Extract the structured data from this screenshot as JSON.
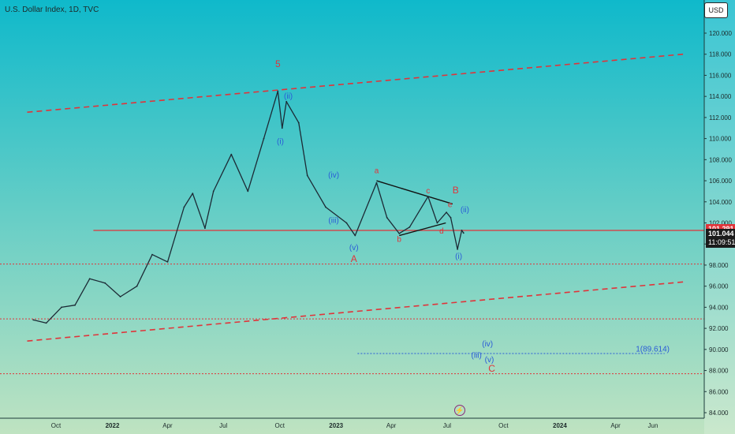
{
  "header": {
    "symbol_title": "U.S. Dollar Index, 1D, TVC",
    "currency_button": "USD"
  },
  "price_badges": {
    "level": "101.291",
    "last_price": "101.044",
    "countdown": "11:09:51"
  },
  "chart_data": {
    "type": "line",
    "title": "U.S. Dollar Index, 1D, TVC",
    "x_ticks": [
      "Oct",
      "2022",
      "Apr",
      "Jul",
      "Oct",
      "2023",
      "Apr",
      "Jul",
      "Oct",
      "2024",
      "Apr",
      "Jun"
    ],
    "y_ticks": [
      "84.000",
      "86.000",
      "88.000",
      "90.000",
      "92.000",
      "94.000",
      "96.000",
      "98.000",
      "100.000",
      "102.000",
      "104.000",
      "106.000",
      "108.000",
      "110.000",
      "112.000",
      "114.000",
      "116.000",
      "118.000",
      "120.000"
    ],
    "ylim": [
      83.5,
      121.5
    ],
    "series": [
      {
        "name": "",
        "points": [
          [
            "2021-08-25",
            92.8
          ],
          [
            "2021-09-15",
            92.5
          ],
          [
            "2021-10-10",
            94.0
          ],
          [
            "2021-11-01",
            94.2
          ],
          [
            "2021-11-25",
            96.7
          ],
          [
            "2021-12-20",
            96.3
          ],
          [
            "2022-01-14",
            95.0
          ],
          [
            "2022-02-10",
            96.0
          ],
          [
            "2022-03-07",
            99.0
          ],
          [
            "2022-04-01",
            98.3
          ],
          [
            "2022-04-28",
            103.5
          ],
          [
            "2022-05-12",
            104.8
          ],
          [
            "2022-06-01",
            101.5
          ],
          [
            "2022-06-15",
            105.0
          ],
          [
            "2022-07-14",
            108.5
          ],
          [
            "2022-08-10",
            105.0
          ],
          [
            "2022-09-05",
            110.0
          ],
          [
            "2022-09-28",
            114.5
          ],
          [
            "2022-10-05",
            111.0
          ],
          [
            "2022-10-12",
            113.5
          ],
          [
            "2022-11-01",
            111.5
          ],
          [
            "2022-11-15",
            106.5
          ],
          [
            "2022-12-15",
            103.5
          ],
          [
            "2023-01-18",
            102.0
          ],
          [
            "2023-02-01",
            100.8
          ],
          [
            "2023-03-08",
            105.8
          ],
          [
            "2023-03-25",
            102.5
          ],
          [
            "2023-04-14",
            101.0
          ],
          [
            "2023-05-01",
            101.6
          ],
          [
            "2023-05-31",
            104.5
          ],
          [
            "2023-06-15",
            102.0
          ],
          [
            "2023-06-30",
            103.0
          ],
          [
            "2023-07-07",
            102.5
          ],
          [
            "2023-07-18",
            99.5
          ],
          [
            "2023-07-25",
            101.3
          ],
          [
            "2023-07-28",
            101.04
          ]
        ]
      }
    ],
    "trend_lines": [
      {
        "style": "dashed",
        "color": "#e0343a",
        "from": [
          "2021-08-15",
          112.5
        ],
        "to": [
          "2024-07-20",
          118.0
        ]
      },
      {
        "style": "dashed",
        "color": "#e0343a",
        "from": [
          "2021-08-15",
          90.8
        ],
        "to": [
          "2024-07-20",
          96.4
        ]
      },
      {
        "style": "solid",
        "color": "#111111",
        "from": [
          "2023-03-08",
          106.0
        ],
        "to": [
          "2023-07-10",
          103.8
        ]
      },
      {
        "style": "solid",
        "color": "#111111",
        "from": [
          "2023-04-14",
          100.8
        ],
        "to": [
          "2023-06-29",
          102.0
        ]
      }
    ],
    "horizontal_lines": [
      {
        "value": 101.291,
        "style": "solid",
        "color": "#e0343a",
        "from": "2021-12-01"
      },
      {
        "value": 98.1,
        "style": "dotted",
        "color": "#e0343a"
      },
      {
        "value": 92.9,
        "style": "dotted",
        "color": "#e0343a"
      },
      {
        "value": 87.7,
        "style": "dotted",
        "color": "#e0343a"
      },
      {
        "value": 89.614,
        "style": "dotted",
        "color": "#2a5bd7",
        "from": "2023-02-05",
        "to": "2024-06-20"
      }
    ],
    "annotations": [
      {
        "text": "5",
        "x": "2022-09-28",
        "y": 116.8,
        "color": "#e0343a"
      },
      {
        "text": "(ii)",
        "x": "2022-10-15",
        "y": 113.8,
        "color": "#2a5bd7"
      },
      {
        "text": "(i)",
        "x": "2022-10-02",
        "y": 109.5,
        "color": "#2a5bd7"
      },
      {
        "text": "(iv)",
        "x": "2022-12-28",
        "y": 106.3,
        "color": "#2a5bd7"
      },
      {
        "text": "(iii)",
        "x": "2022-12-28",
        "y": 102.0,
        "color": "#2a5bd7"
      },
      {
        "text": "(v)",
        "x": "2023-01-30",
        "y": 99.4,
        "color": "#2a5bd7"
      },
      {
        "text": "A",
        "x": "2023-01-30",
        "y": 98.3,
        "color": "#e0343a"
      },
      {
        "text": "a",
        "x": "2023-03-08",
        "y": 106.7,
        "color": "#e0343a"
      },
      {
        "text": "b",
        "x": "2023-04-14",
        "y": 100.2,
        "color": "#e0343a"
      },
      {
        "text": "c",
        "x": "2023-05-31",
        "y": 104.8,
        "color": "#e0343a"
      },
      {
        "text": "B",
        "x": "2023-07-15",
        "y": 104.8,
        "color": "#e0343a"
      },
      {
        "text": "d",
        "x": "2023-06-22",
        "y": 101.0,
        "color": "#e0343a"
      },
      {
        "text": "e",
        "x": "2023-07-06",
        "y": 103.5,
        "color": "#e0343a"
      },
      {
        "text": "(ii)",
        "x": "2023-07-30",
        "y": 103.0,
        "color": "#2a5bd7"
      },
      {
        "text": "(i)",
        "x": "2023-07-20",
        "y": 98.6,
        "color": "#2a5bd7"
      },
      {
        "text": "(iv)",
        "x": "2023-09-05",
        "y": 90.3,
        "color": "#2a5bd7"
      },
      {
        "text": "(iii)",
        "x": "2023-08-18",
        "y": 89.2,
        "color": "#2a5bd7"
      },
      {
        "text": "(v)",
        "x": "2023-09-08",
        "y": 88.8,
        "color": "#2a5bd7"
      },
      {
        "text": "C",
        "x": "2023-09-12",
        "y": 87.9,
        "color": "#e0343a"
      },
      {
        "text": "1(89.614)",
        "x": "2024-06-28",
        "y": 89.8,
        "color": "#2a5bd7"
      }
    ],
    "grid": false,
    "colors": {
      "background_top": "#0fb9cb",
      "background_bottom": "#bfe3c1",
      "price_line": "#1c2a35",
      "wave_red": "#e0343a",
      "wave_blue": "#2a5bd7"
    }
  }
}
